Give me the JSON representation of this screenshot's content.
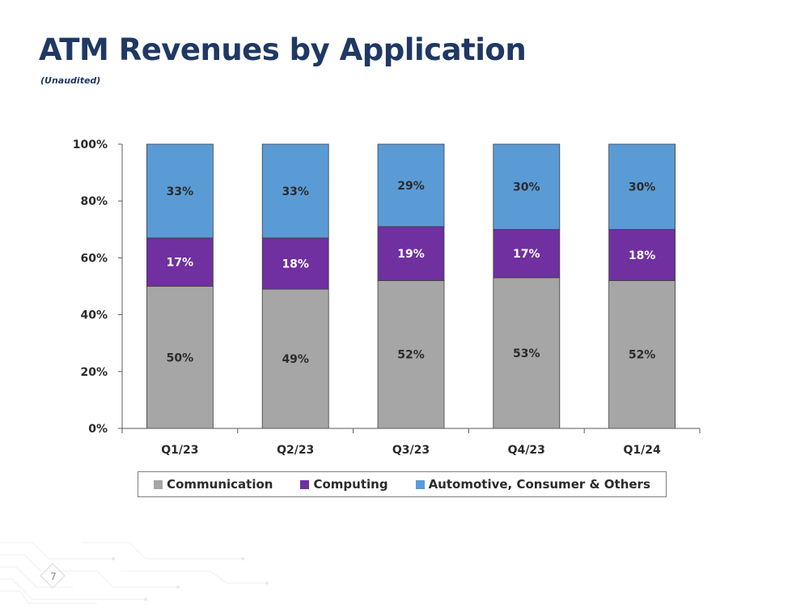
{
  "page": {
    "title": "ATM Revenues by Application",
    "subtitle": "(Unaudited)",
    "page_number": "7"
  },
  "colors": {
    "title": "#1f3864",
    "communication": "#a6a6a6",
    "computing": "#7030a0",
    "automotive": "#5b9bd5"
  },
  "chart_data": {
    "type": "bar",
    "stacked": true,
    "title": "",
    "xlabel": "",
    "ylabel": "",
    "ylim": [
      0,
      100
    ],
    "y_ticks": [
      "0%",
      "20%",
      "40%",
      "60%",
      "80%",
      "100%"
    ],
    "y_tick_values": [
      0,
      20,
      40,
      60,
      80,
      100
    ],
    "categories": [
      "Q1/23",
      "Q2/23",
      "Q3/23",
      "Q4/23",
      "Q1/24"
    ],
    "series": [
      {
        "name": "Communication",
        "values": [
          50,
          49,
          52,
          53,
          52
        ],
        "labels": [
          "50%",
          "49%",
          "52%",
          "53%",
          "52%"
        ],
        "color": "#a6a6a6",
        "label_color": "#2b2b2b"
      },
      {
        "name": "Computing",
        "values": [
          17,
          18,
          19,
          17,
          18
        ],
        "labels": [
          "17%",
          "18%",
          "19%",
          "17%",
          "18%"
        ],
        "color": "#7030a0",
        "label_color": "#ffffff"
      },
      {
        "name": "Automotive, Consumer & Others",
        "values": [
          33,
          33,
          29,
          30,
          30
        ],
        "labels": [
          "33%",
          "33%",
          "29%",
          "30%",
          "30%"
        ],
        "color": "#5b9bd5",
        "label_color": "#2b2b2b"
      }
    ],
    "legend_position": "bottom"
  }
}
